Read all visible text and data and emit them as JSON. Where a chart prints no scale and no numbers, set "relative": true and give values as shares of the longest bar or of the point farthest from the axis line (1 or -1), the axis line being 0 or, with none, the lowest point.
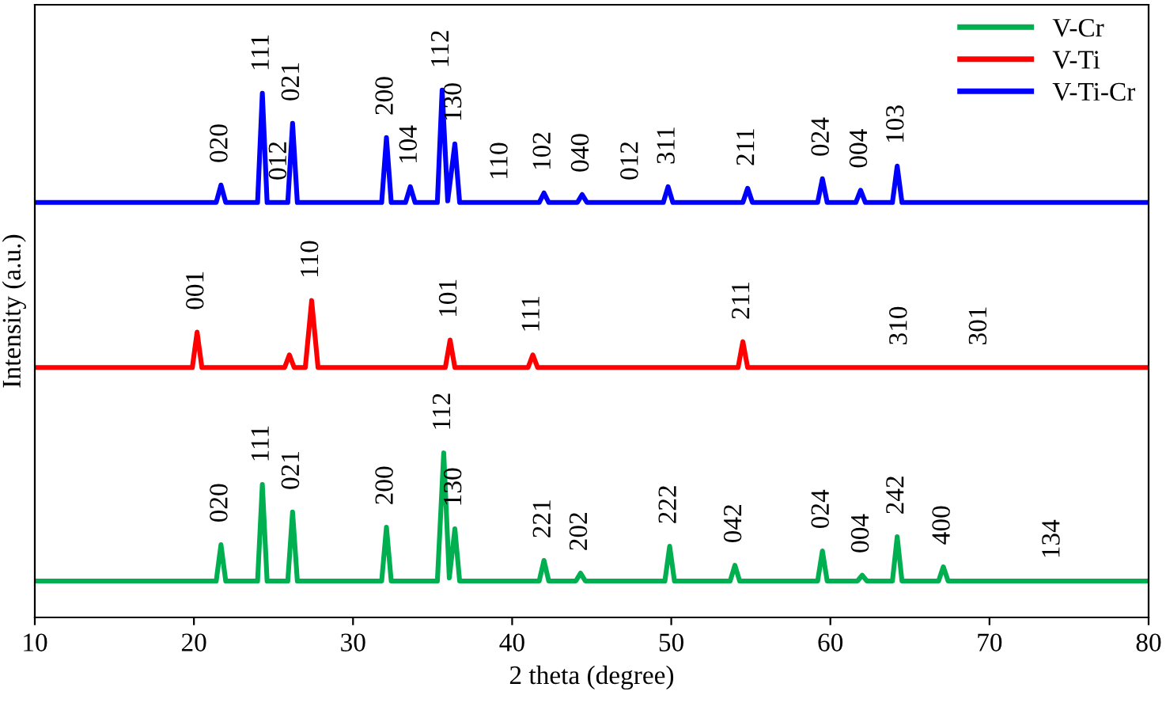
{
  "chart_data": {
    "type": "line",
    "relative": true,
    "xlabel": "2 theta (degree)",
    "ylabel": "Intensity (a.u.)",
    "xlim": [
      10,
      80
    ],
    "xticks": [
      10,
      20,
      30,
      40,
      50,
      60,
      70,
      80
    ],
    "tick_labels": "x",
    "legend": "top right",
    "grid": false,
    "marker": "none",
    "line_style": "solid",
    "series": [
      {
        "name": "V-Cr",
        "color": "#00b050",
        "x": [
          10,
          21.4,
          21.7,
          22,
          24,
          24.3,
          24.6,
          25.9,
          26.2,
          26.5,
          31.8,
          32.1,
          32.4,
          35.3,
          35.7,
          36.05,
          36.4,
          36.7,
          41.7,
          42,
          42.3,
          44,
          44.3,
          44.6,
          49.6,
          49.9,
          50.2,
          53.7,
          54,
          54.3,
          59.2,
          59.5,
          59.8,
          61.7,
          62,
          62.3,
          63.9,
          64.2,
          64.5,
          66.8,
          67.1,
          67.4,
          80
        ],
        "values": [
          0.069,
          0.069,
          0.138,
          0.069,
          0.069,
          0.252,
          0.069,
          0.069,
          0.2,
          0.069,
          0.069,
          0.171,
          0.069,
          0.069,
          0.312,
          0.075,
          0.168,
          0.069,
          0.069,
          0.108,
          0.069,
          0.069,
          0.084,
          0.069,
          0.069,
          0.135,
          0.069,
          0.069,
          0.099,
          0.069,
          0.069,
          0.126,
          0.069,
          0.069,
          0.08,
          0.069,
          0.069,
          0.153,
          0.069,
          0.069,
          0.096,
          0.069,
          0.069
        ]
      },
      {
        "name": "V-Ti",
        "color": "#ff0000",
        "x": [
          10,
          19.9,
          20.2,
          20.5,
          25.7,
          26,
          26.3,
          27,
          27.4,
          27.8,
          35.8,
          36.1,
          36.4,
          41,
          41.3,
          41.6,
          54.2,
          54.5,
          54.8,
          80
        ],
        "values": [
          0.474,
          0.474,
          0.541,
          0.474,
          0.474,
          0.498,
          0.474,
          0.474,
          0.601,
          0.474,
          0.474,
          0.526,
          0.474,
          0.474,
          0.498,
          0.474,
          0.474,
          0.523,
          0.474,
          0.474
        ]
      },
      {
        "name": "V-Ti-Cr",
        "color": "#0000ff",
        "x": [
          10,
          21.4,
          21.7,
          22,
          24,
          24.3,
          24.6,
          25.9,
          26.2,
          26.5,
          31.8,
          32.1,
          32.4,
          33.3,
          33.6,
          33.9,
          35.3,
          35.6,
          35.95,
          36.4,
          36.7,
          41.7,
          42,
          42.3,
          44.1,
          44.4,
          44.7,
          49.5,
          49.8,
          50.1,
          54.5,
          54.8,
          55.1,
          59.2,
          59.5,
          59.8,
          61.6,
          61.9,
          62.2,
          63.9,
          64.2,
          64.5,
          80
        ],
        "values": [
          0.787,
          0.787,
          0.82,
          0.787,
          0.787,
          0.994,
          0.787,
          0.787,
          0.937,
          0.787,
          0.787,
          0.91,
          0.787,
          0.787,
          0.817,
          0.787,
          0.787,
          1.0,
          0.79,
          0.898,
          0.787,
          0.787,
          0.805,
          0.787,
          0.787,
          0.802,
          0.787,
          0.787,
          0.817,
          0.787,
          0.787,
          0.814,
          0.787,
          0.787,
          0.832,
          0.787,
          0.787,
          0.81,
          0.787,
          0.787,
          0.856,
          0.787,
          0.787
        ]
      }
    ],
    "annotations": [
      {
        "text": "020",
        "x": 21.7,
        "y": 0.82
      },
      {
        "text": "111",
        "x": 24.3,
        "y": 0.994
      },
      {
        "text": "012",
        "x": 25.4,
        "y": 0.787
      },
      {
        "text": "021",
        "x": 26.2,
        "y": 0.937
      },
      {
        "text": "200",
        "x": 32.1,
        "y": 0.91
      },
      {
        "text": "104",
        "x": 33.6,
        "y": 0.817
      },
      {
        "text": "112",
        "x": 35.6,
        "y": 1.0
      },
      {
        "text": "130",
        "x": 36.4,
        "y": 0.898
      },
      {
        "text": "110",
        "x": 39.3,
        "y": 0.787
      },
      {
        "text": "102",
        "x": 42,
        "y": 0.805
      },
      {
        "text": "040",
        "x": 44.4,
        "y": 0.802
      },
      {
        "text": "012",
        "x": 47.5,
        "y": 0.787
      },
      {
        "text": "311",
        "x": 49.8,
        "y": 0.817
      },
      {
        "text": "211",
        "x": 54.8,
        "y": 0.814
      },
      {
        "text": "024",
        "x": 59.5,
        "y": 0.832
      },
      {
        "text": "004",
        "x": 61.9,
        "y": 0.81
      },
      {
        "text": "103",
        "x": 64.2,
        "y": 0.856
      },
      {
        "text": "001",
        "x": 20.2,
        "y": 0.541
      },
      {
        "text": "110",
        "x": 27.4,
        "y": 0.601
      },
      {
        "text": "101",
        "x": 36.1,
        "y": 0.526
      },
      {
        "text": "111",
        "x": 41.3,
        "y": 0.498
      },
      {
        "text": "211",
        "x": 54.5,
        "y": 0.523
      },
      {
        "text": "310",
        "x": 64.4,
        "y": 0.474
      },
      {
        "text": "301",
        "x": 69.4,
        "y": 0.474
      },
      {
        "text": "020",
        "x": 21.7,
        "y": 0.138
      },
      {
        "text": "111",
        "x": 24.3,
        "y": 0.252
      },
      {
        "text": "021",
        "x": 26.2,
        "y": 0.2
      },
      {
        "text": "200",
        "x": 32.1,
        "y": 0.171
      },
      {
        "text": "112",
        "x": 35.7,
        "y": 0.312
      },
      {
        "text": "130",
        "x": 36.4,
        "y": 0.168
      },
      {
        "text": "221",
        "x": 42,
        "y": 0.108
      },
      {
        "text": "202",
        "x": 44.3,
        "y": 0.084
      },
      {
        "text": "222",
        "x": 49.9,
        "y": 0.135
      },
      {
        "text": "042",
        "x": 54,
        "y": 0.099
      },
      {
        "text": "024",
        "x": 59.5,
        "y": 0.126
      },
      {
        "text": "004",
        "x": 62,
        "y": 0.08
      },
      {
        "text": "242",
        "x": 64.2,
        "y": 0.153
      },
      {
        "text": "400",
        "x": 67.1,
        "y": 0.096
      },
      {
        "text": "134",
        "x": 74,
        "y": 0.069
      }
    ]
  }
}
